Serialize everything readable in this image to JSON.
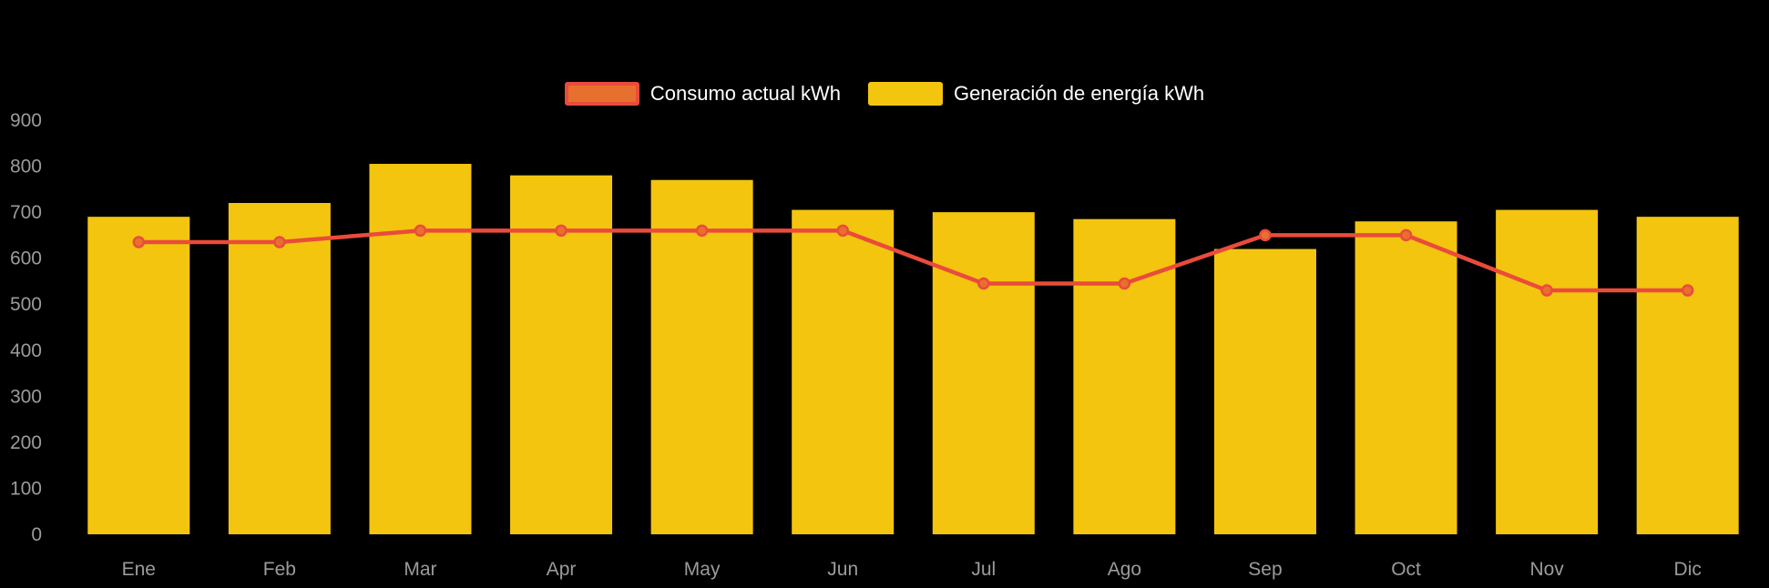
{
  "chart_data": {
    "type": "bar+line",
    "title": "",
    "categories": [
      "Ene",
      "Feb",
      "Mar",
      "Apr",
      "May",
      "Jun",
      "Jul",
      "Ago",
      "Sep",
      "Oct",
      "Nov",
      "Dic"
    ],
    "series": [
      {
        "name": "Consumo actual kWh",
        "type": "line",
        "values": [
          635,
          635,
          660,
          660,
          660,
          660,
          545,
          545,
          650,
          650,
          530,
          530
        ],
        "color": "#ea4b3b",
        "point_fill": "#e8702e"
      },
      {
        "name": "Generación de energía kWh",
        "type": "bar",
        "values": [
          690,
          720,
          805,
          780,
          770,
          705,
          700,
          685,
          620,
          680,
          705,
          690
        ],
        "color": "#f3c50f"
      }
    ],
    "ylim": [
      0,
      900
    ],
    "yticks": [
      0,
      100,
      200,
      300,
      400,
      500,
      600,
      700,
      800,
      900
    ],
    "grid": false,
    "legend_position": "top",
    "background": "#000000",
    "axis_text_color": "#9b9b9b"
  }
}
